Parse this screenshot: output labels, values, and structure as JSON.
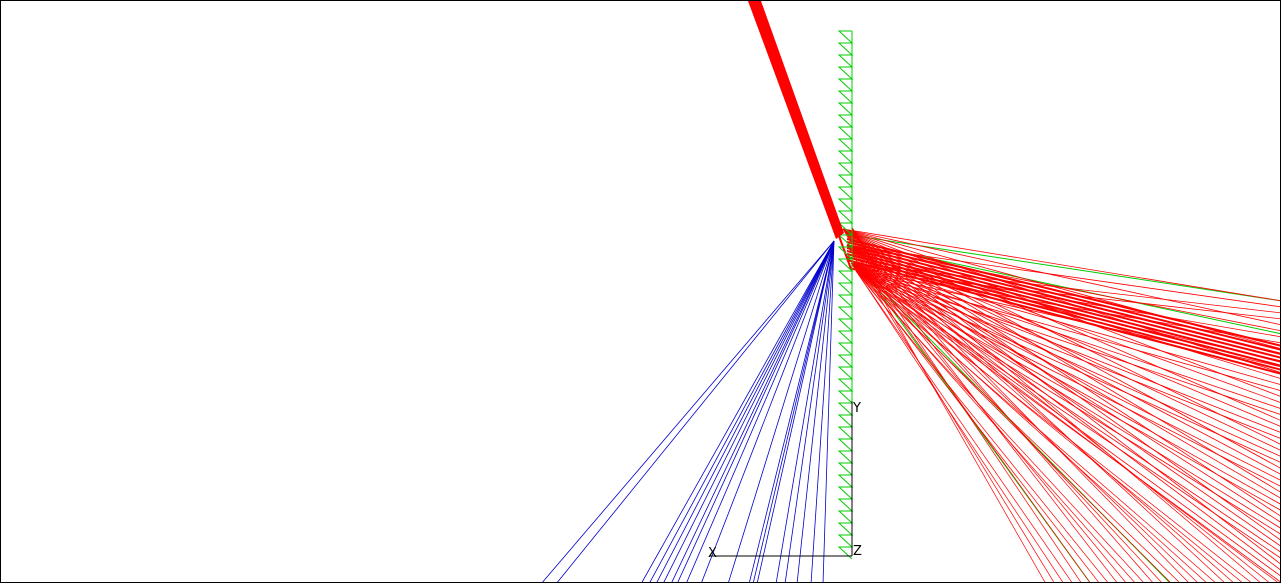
{
  "axes": {
    "x_label": "X",
    "y_label": "Y",
    "z_label": "Z"
  },
  "colors": {
    "background": "#ffffff",
    "frame": "#000000",
    "incident_beam": "#ff0000",
    "reflected_rays": "#ff0000",
    "transmitted_rays": "#0000cc",
    "grating": "#00cc00",
    "green_rays": "#00cc00",
    "axis": "#000000"
  },
  "elements": {
    "grating": "zigzag-surface",
    "incident_beam": "thick-red-beam"
  }
}
